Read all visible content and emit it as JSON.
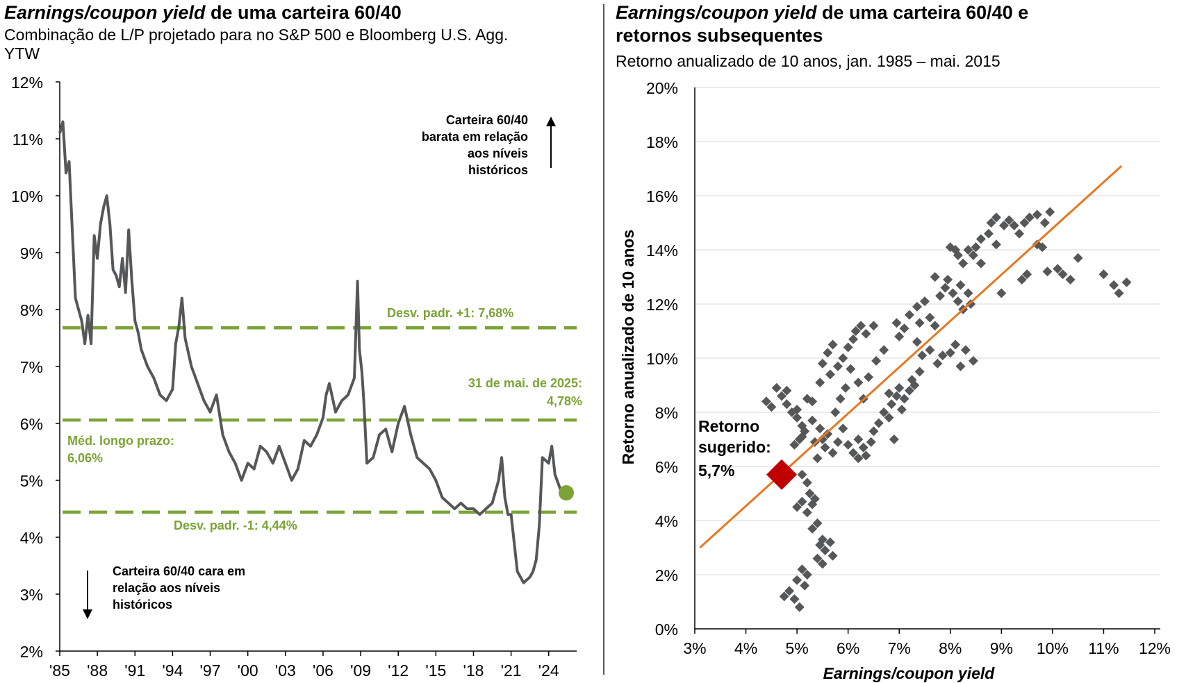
{
  "left_panel": {
    "title_italic": "Earnings/coupon yield",
    "title_rest": " de uma carteira 60/40",
    "subtitle_line1": "Combinação de L/P projetado para no S&P 500 e Bloomberg U.S. Agg.",
    "subtitle_line2": "YTW"
  },
  "right_panel": {
    "title_italic": "Earnings/coupon yield",
    "title_rest_line1": " de uma carteira 60/40 e",
    "title_line2": "retornos subsequentes",
    "subtitle": "Retorno anualizado de 10 anos, jan. 1985 – mai. 2015"
  },
  "colors": {
    "line": "#555759",
    "green": "#7ba335",
    "orange": "#e87722",
    "red": "#c00000",
    "scatter": "#555759",
    "grid": "#d9d9d9"
  },
  "chart_data": [
    {
      "type": "line",
      "title": "Earnings/coupon yield de uma carteira 60/40",
      "ylim": [
        2,
        12
      ],
      "xlim": [
        1985,
        2025.4
      ],
      "y_ticks": [
        {
          "v": 2,
          "label": "2%"
        },
        {
          "v": 3,
          "label": "3%"
        },
        {
          "v": 4,
          "label": "4%"
        },
        {
          "v": 5,
          "label": "5%"
        },
        {
          "v": 6,
          "label": "6%"
        },
        {
          "v": 7,
          "label": "7%"
        },
        {
          "v": 8,
          "label": "8%"
        },
        {
          "v": 9,
          "label": "9%"
        },
        {
          "v": 10,
          "label": "10%"
        },
        {
          "v": 11,
          "label": "11%"
        },
        {
          "v": 12,
          "label": "12%"
        }
      ],
      "x_ticks": [
        {
          "v": 1985,
          "label": "'85"
        },
        {
          "v": 1988,
          "label": "'88"
        },
        {
          "v": 1991,
          "label": "'91"
        },
        {
          "v": 1994,
          "label": "'94"
        },
        {
          "v": 1997,
          "label": "'97"
        },
        {
          "v": 2000,
          "label": "'00"
        },
        {
          "v": 2003,
          "label": "'03"
        },
        {
          "v": 2006,
          "label": "'06"
        },
        {
          "v": 2009,
          "label": "'09"
        },
        {
          "v": 2012,
          "label": "'12"
        },
        {
          "v": 2015,
          "label": "'15"
        },
        {
          "v": 2018,
          "label": "'18"
        },
        {
          "v": 2021,
          "label": "'21"
        },
        {
          "v": 2024,
          "label": "'24"
        }
      ],
      "series": [
        {
          "name": "Earnings/coupon yield 60/40",
          "x": [
            1985.0,
            1985.25,
            1985.5,
            1985.75,
            1986.0,
            1986.25,
            1986.5,
            1986.75,
            1987.0,
            1987.25,
            1987.5,
            1987.75,
            1988.0,
            1988.25,
            1988.5,
            1988.75,
            1989.0,
            1989.25,
            1989.5,
            1989.75,
            1990.0,
            1990.25,
            1990.5,
            1990.75,
            1991.0,
            1991.25,
            1991.5,
            1992.0,
            1992.5,
            1993.0,
            1993.5,
            1994.0,
            1994.25,
            1994.5,
            1994.75,
            1995.0,
            1995.5,
            1996.0,
            1996.5,
            1997.0,
            1997.5,
            1998.0,
            1998.5,
            1999.0,
            1999.5,
            2000.0,
            2000.5,
            2001.0,
            2001.5,
            2002.0,
            2002.5,
            2003.0,
            2003.5,
            2004.0,
            2004.5,
            2005.0,
            2005.5,
            2006.0,
            2006.25,
            2006.5,
            2007.0,
            2007.5,
            2008.0,
            2008.5,
            2008.75,
            2008.9,
            2009.1,
            2009.25,
            2009.5,
            2010.0,
            2010.5,
            2011.0,
            2011.5,
            2012.0,
            2012.5,
            2013.0,
            2013.5,
            2014.0,
            2014.5,
            2015.0,
            2015.5,
            2016.0,
            2016.5,
            2017.0,
            2017.5,
            2018.0,
            2018.5,
            2019.0,
            2019.5,
            2020.0,
            2020.25,
            2020.5,
            2020.75,
            2021.0,
            2021.5,
            2022.0,
            2022.5,
            2022.75,
            2023.0,
            2023.25,
            2023.5,
            2024.0,
            2024.25,
            2024.5,
            2025.0,
            2025.4
          ],
          "values": [
            11.1,
            11.3,
            10.4,
            10.6,
            9.4,
            8.2,
            8.0,
            7.8,
            7.4,
            7.9,
            7.4,
            9.3,
            8.9,
            9.5,
            9.8,
            10.0,
            9.5,
            8.7,
            8.6,
            8.4,
            8.9,
            8.3,
            9.4,
            8.5,
            7.8,
            7.6,
            7.3,
            7.0,
            6.8,
            6.5,
            6.4,
            6.6,
            7.4,
            7.7,
            8.2,
            7.5,
            7.0,
            6.7,
            6.4,
            6.2,
            6.5,
            5.8,
            5.5,
            5.3,
            5.0,
            5.3,
            5.2,
            5.6,
            5.5,
            5.3,
            5.6,
            5.3,
            5.0,
            5.2,
            5.7,
            5.6,
            5.8,
            6.1,
            6.5,
            6.7,
            6.2,
            6.4,
            6.5,
            6.8,
            8.5,
            7.3,
            6.9,
            6.4,
            5.3,
            5.4,
            5.8,
            5.9,
            5.5,
            6.0,
            6.3,
            5.8,
            5.4,
            5.3,
            5.2,
            5.0,
            4.7,
            4.6,
            4.5,
            4.6,
            4.5,
            4.5,
            4.4,
            4.5,
            4.6,
            5.0,
            5.4,
            4.7,
            4.4,
            4.4,
            3.4,
            3.2,
            3.3,
            3.4,
            3.6,
            4.2,
            5.4,
            5.3,
            5.6,
            5.1,
            4.8,
            4.78
          ]
        }
      ],
      "reference_lines": [
        {
          "value": 7.68,
          "label": "Desv. padr. +1: 7,68%"
        },
        {
          "value": 6.06,
          "label_line1": "Méd. longo prazo:",
          "label_line2": "6,06%"
        },
        {
          "value": 4.44,
          "label": "Desv. padr. -1: 4,44%"
        }
      ],
      "current_point": {
        "x": 2025.4,
        "value": 4.78,
        "label_line1": "31 de mai. de 2025:",
        "label_line2": "4,78%"
      },
      "annotation_up": [
        "Carteira 60/40",
        "barata em relação",
        "aos níveis",
        "históricos"
      ],
      "annotation_down": [
        "Carteira 60/40 cara em",
        "relação aos níveis",
        "históricos"
      ]
    },
    {
      "type": "scatter",
      "title": "Earnings/coupon yield de uma carteira 60/40 e retornos subsequentes",
      "xlabel": "Earnings/coupon yield",
      "ylabel": "Retorno anualizado de 10 anos",
      "xlim": [
        3,
        12
      ],
      "ylim": [
        0,
        20
      ],
      "x_ticks": [
        {
          "v": 3,
          "label": "3%"
        },
        {
          "v": 4,
          "label": "4%"
        },
        {
          "v": 5,
          "label": "5%"
        },
        {
          "v": 6,
          "label": "6%"
        },
        {
          "v": 7,
          "label": "7%"
        },
        {
          "v": 8,
          "label": "8%"
        },
        {
          "v": 9,
          "label": "9%"
        },
        {
          "v": 10,
          "label": "10%"
        },
        {
          "v": 11,
          "label": "11%"
        },
        {
          "v": 12,
          "label": "12%"
        }
      ],
      "y_ticks": [
        {
          "v": 0,
          "label": "0%"
        },
        {
          "v": 2,
          "label": "2%"
        },
        {
          "v": 4,
          "label": "4%"
        },
        {
          "v": 6,
          "label": "6%"
        },
        {
          "v": 8,
          "label": "8%"
        },
        {
          "v": 10,
          "label": "10%"
        },
        {
          "v": 12,
          "label": "12%"
        },
        {
          "v": 14,
          "label": "14%"
        },
        {
          "v": 16,
          "label": "16%"
        },
        {
          "v": 18,
          "label": "18%"
        },
        {
          "v": 20,
          "label": "20%"
        }
      ],
      "points": [
        [
          4.4,
          8.4
        ],
        [
          4.5,
          8.2
        ],
        [
          4.6,
          8.9
        ],
        [
          4.7,
          8.6
        ],
        [
          4.8,
          8.3
        ],
        [
          4.9,
          8.0
        ],
        [
          4.8,
          8.8
        ],
        [
          5.0,
          7.8
        ],
        [
          5.1,
          7.5
        ],
        [
          5.0,
          8.1
        ],
        [
          5.2,
          8.5
        ],
        [
          5.3,
          8.4
        ],
        [
          5.1,
          7.1
        ],
        [
          4.95,
          6.8
        ],
        [
          5.05,
          7.0
        ],
        [
          5.15,
          7.3
        ],
        [
          5.3,
          7.7
        ],
        [
          5.35,
          6.9
        ],
        [
          5.45,
          7.4
        ],
        [
          5.5,
          7.0
        ],
        [
          5.4,
          6.3
        ],
        [
          5.55,
          6.7
        ],
        [
          5.6,
          7.2
        ],
        [
          5.7,
          6.5
        ],
        [
          5.8,
          6.9
        ],
        [
          5.9,
          7.4
        ],
        [
          5.75,
          8.0
        ],
        [
          5.85,
          8.5
        ],
        [
          5.45,
          9.1
        ],
        [
          5.5,
          9.8
        ],
        [
          5.6,
          10.2
        ],
        [
          5.7,
          10.5
        ],
        [
          5.65,
          9.4
        ],
        [
          5.8,
          9.7
        ],
        [
          5.9,
          10.0
        ],
        [
          6.0,
          10.4
        ],
        [
          6.1,
          10.7
        ],
        [
          6.15,
          11.0
        ],
        [
          6.25,
          11.2
        ],
        [
          6.35,
          10.9
        ],
        [
          6.5,
          11.2
        ],
        [
          6.05,
          9.6
        ],
        [
          6.2,
          9.1
        ],
        [
          5.95,
          8.9
        ],
        [
          6.3,
          8.5
        ],
        [
          6.4,
          9.3
        ],
        [
          6.55,
          9.9
        ],
        [
          6.7,
          10.3
        ],
        [
          5.1,
          5.7
        ],
        [
          5.2,
          5.4
        ],
        [
          5.25,
          5.0
        ],
        [
          5.1,
          4.7
        ],
        [
          5.3,
          4.6
        ],
        [
          5.0,
          4.5
        ],
        [
          5.2,
          4.3
        ],
        [
          5.35,
          4.8
        ],
        [
          5.4,
          3.9
        ],
        [
          5.3,
          3.7
        ],
        [
          5.5,
          3.3
        ],
        [
          5.45,
          3.1
        ],
        [
          5.55,
          2.9
        ],
        [
          5.65,
          3.2
        ],
        [
          5.7,
          2.7
        ],
        [
          5.4,
          2.6
        ],
        [
          5.5,
          2.4
        ],
        [
          5.1,
          2.2
        ],
        [
          5.2,
          2.0
        ],
        [
          5.0,
          1.8
        ],
        [
          5.15,
          1.6
        ],
        [
          4.85,
          1.4
        ],
        [
          4.95,
          1.1
        ],
        [
          5.05,
          0.8
        ],
        [
          4.75,
          1.2
        ],
        [
          6.0,
          6.8
        ],
        [
          6.1,
          6.5
        ],
        [
          6.2,
          7.0
        ],
        [
          6.3,
          6.7
        ],
        [
          6.35,
          6.4
        ],
        [
          6.45,
          6.9
        ],
        [
          6.5,
          7.3
        ],
        [
          6.2,
          6.3
        ],
        [
          6.6,
          7.6
        ],
        [
          6.7,
          8.0
        ],
        [
          6.8,
          7.8
        ],
        [
          6.85,
          8.3
        ],
        [
          6.95,
          8.6
        ],
        [
          6.9,
          7.0
        ],
        [
          7.0,
          8.9
        ],
        [
          7.05,
          8.1
        ],
        [
          7.1,
          8.5
        ],
        [
          7.2,
          8.8
        ],
        [
          7.25,
          9.2
        ],
        [
          7.3,
          9.0
        ],
        [
          6.8,
          8.7
        ],
        [
          7.4,
          9.5
        ],
        [
          7.45,
          10.1
        ],
        [
          7.35,
          10.6
        ],
        [
          7.0,
          10.8
        ],
        [
          6.95,
          11.3
        ],
        [
          7.1,
          11.1
        ],
        [
          7.2,
          11.6
        ],
        [
          7.35,
          11.9
        ],
        [
          7.5,
          12.1
        ],
        [
          7.6,
          11.5
        ],
        [
          7.8,
          12.3
        ],
        [
          7.9,
          12.6
        ],
        [
          7.95,
          12.9
        ],
        [
          8.05,
          12.4
        ],
        [
          8.15,
          12.1
        ],
        [
          8.2,
          12.7
        ],
        [
          8.25,
          11.8
        ],
        [
          8.35,
          12.4
        ],
        [
          8.4,
          12.0
        ],
        [
          7.7,
          11.2
        ],
        [
          7.6,
          10.3
        ],
        [
          7.75,
          9.8
        ],
        [
          7.85,
          10.1
        ],
        [
          8.0,
          10.2
        ],
        [
          8.1,
          10.5
        ],
        [
          8.2,
          9.7
        ],
        [
          8.3,
          10.3
        ],
        [
          8.45,
          9.9
        ],
        [
          7.4,
          11.3
        ],
        [
          7.7,
          13.0
        ],
        [
          8.0,
          14.1
        ],
        [
          8.1,
          14.0
        ],
        [
          8.15,
          13.8
        ],
        [
          8.25,
          13.5
        ],
        [
          8.35,
          14.0
        ],
        [
          8.45,
          13.8
        ],
        [
          8.5,
          14.1
        ],
        [
          8.6,
          13.5
        ],
        [
          8.6,
          14.4
        ],
        [
          8.75,
          14.6
        ],
        [
          8.8,
          15.0
        ],
        [
          8.9,
          15.2
        ],
        [
          8.9,
          14.2
        ],
        [
          9.05,
          14.9
        ],
        [
          9.15,
          15.1
        ],
        [
          9.25,
          14.9
        ],
        [
          9.35,
          14.6
        ],
        [
          9.45,
          15.0
        ],
        [
          9.55,
          15.2
        ],
        [
          9.7,
          15.3
        ],
        [
          9.85,
          15.0
        ],
        [
          9.95,
          15.4
        ],
        [
          9.7,
          14.2
        ],
        [
          9.0,
          12.4
        ],
        [
          9.4,
          12.9
        ],
        [
          9.8,
          14.1
        ],
        [
          10.1,
          13.3
        ],
        [
          10.2,
          13.1
        ],
        [
          10.35,
          12.9
        ],
        [
          10.5,
          13.7
        ],
        [
          9.9,
          13.2
        ],
        [
          11.0,
          13.1
        ],
        [
          11.2,
          12.7
        ],
        [
          11.3,
          12.4
        ],
        [
          11.45,
          12.8
        ],
        [
          9.5,
          13.1
        ]
      ],
      "trendline": {
        "x1": 3.1,
        "y1": 3.0,
        "x2": 11.35,
        "y2": 17.1
      },
      "highlight": {
        "x": 4.7,
        "y": 5.7,
        "label_line1": "Retorno",
        "label_line2": "sugerido:",
        "label_line3": "5,7%"
      }
    }
  ]
}
